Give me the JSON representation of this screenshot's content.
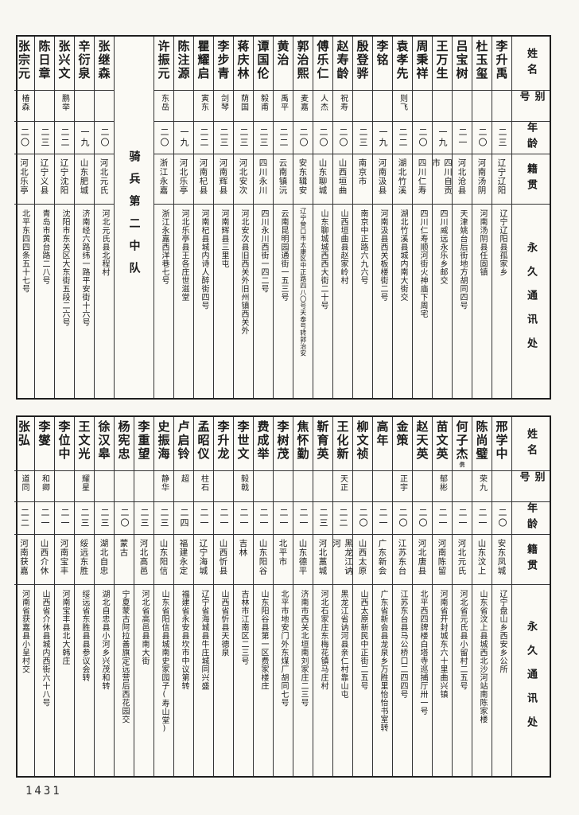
{
  "page": {
    "number": "1431"
  },
  "header_labels": {
    "name": "姓名",
    "alias": "别号",
    "age": "年龄",
    "origin": "籍贯",
    "address": "永久通讯处"
  },
  "tables": [
    {
      "columns": [
        {
          "type": "header"
        },
        {
          "type": "entry",
          "name": "李升禹",
          "alias": "",
          "age": "二三",
          "origin": "辽宁辽阳",
          "address": "辽宁辽阳县孤家乡"
        },
        {
          "type": "entry",
          "name": "杜玉玺",
          "alias": "",
          "age": "二〇",
          "origin": "河南汤阴",
          "address": "河南汤阴县任固镇"
        },
        {
          "type": "entry",
          "name": "吕宝树",
          "alias": "",
          "age": "二一",
          "origin": "河北沧县",
          "address": "天津姚台后街地方胡同四号"
        },
        {
          "type": "entry",
          "name": "王万生",
          "alias": "",
          "age": "一九",
          "origin": "四川自贡市",
          "address": "四川威远永乐乡邮交"
        },
        {
          "type": "entry",
          "name": "周秉祥",
          "alias": "",
          "age": "二〇",
          "origin": "四川仁寿",
          "address": "四川仁寿顺河街火神庙下周宅"
        },
        {
          "type": "entry",
          "name": "袁孝先",
          "alias": "则飞",
          "age": "二二",
          "origin": "湖北竹溪",
          "address": "湖北竹溪县城内南大街交"
        },
        {
          "type": "entry",
          "name": "李铭",
          "alias": "",
          "age": "一九",
          "origin": "河南汲县",
          "address": "河南汲县西关板楼街二号"
        },
        {
          "type": "entry",
          "name": "殷登骅",
          "alias": "",
          "age": "二三",
          "origin": "南京市",
          "address": "南京中正路六九六号"
        },
        {
          "type": "entry",
          "name": "赵寿龄",
          "alias": "祝寿",
          "age": "二〇",
          "origin": "山西垣曲",
          "address": "山西垣曲县赵家岭村"
        },
        {
          "type": "entry",
          "name": "傅乐仁",
          "alias": "人杰",
          "age": "二〇",
          "origin": "山东聊城",
          "address": "山东聊城城西西大街二十号"
        },
        {
          "type": "entry",
          "name": "郭治熙",
          "alias": "麦嘉",
          "age": "二〇",
          "origin": "安东辑安",
          "address": "辽宁营口市太康区中正路四八〇号天泰号转郭治安",
          "small_addr": true
        },
        {
          "type": "entry",
          "name": "黄治",
          "alias": "禹平",
          "age": "二二",
          "origin": "云南镇沅",
          "address": "云南昆明园通街一五三号"
        },
        {
          "type": "entry",
          "name": "谭国伦",
          "alias": "毅甫",
          "age": "二三",
          "origin": "四川永川",
          "address": "四川永川西街一四二号"
        },
        {
          "type": "entry",
          "name": "蒋庆林",
          "alias": "荫国",
          "age": "二三",
          "origin": "河北安次",
          "address": "河北安次县旧西关外旧州镇西关外"
        },
        {
          "type": "entry",
          "name": "李步青",
          "alias": "剑琴",
          "age": "二三",
          "origin": "河南辉县",
          "address": "河南辉县三里屯"
        },
        {
          "type": "entry",
          "name": "瞿耀启",
          "alias": "寅东",
          "age": "二二",
          "origin": "河南杞县",
          "address": "河南杞县城内诗人醉街四号"
        },
        {
          "type": "entry",
          "name": "陈注源",
          "alias": "",
          "age": "一九",
          "origin": "河北乐亭",
          "address": "河北乐亭县王各庄世滋堂"
        },
        {
          "type": "entry",
          "name": "许振元",
          "alias": "东岳",
          "age": "二〇",
          "origin": "浙江永嘉",
          "address": "浙江永嘉西洋巷七号"
        },
        {
          "type": "section",
          "label": "骑兵第二中队"
        },
        {
          "type": "entry",
          "name": "张继森",
          "alias": "",
          "age": "二〇",
          "origin": "河北元氏",
          "address": "河北元氏县北程村"
        },
        {
          "type": "entry",
          "name": "辛衍泉",
          "alias": "",
          "age": "一九",
          "origin": "山东肥城",
          "address": "济南经六路纬一路平安街十六号"
        },
        {
          "type": "entry",
          "name": "张兴文",
          "alias": "鹏举",
          "age": "二二",
          "origin": "辽宁沈阳",
          "address": "沈阳市东关区大东街五段二六号"
        },
        {
          "type": "entry",
          "name": "陈日章",
          "alias": "",
          "age": "二三",
          "origin": "辽宁义县",
          "address": "青岛市黄台路二八号"
        },
        {
          "type": "entry",
          "name": "张宗元",
          "alias": "椿森",
          "age": "二〇",
          "origin": "河北乐亭",
          "address": "北平东四四条五十七号"
        }
      ]
    },
    {
      "columns": [
        {
          "type": "header"
        },
        {
          "type": "entry",
          "name": "邢学中",
          "alias": "",
          "age": "二〇",
          "origin": "安东凤城",
          "address": "辽宁盘山乡西安乡公所"
        },
        {
          "type": "entry",
          "name": "陈尚璧",
          "alias": "荣九",
          "age": "二一",
          "origin": "山东汶上",
          "address": "山东省汶上县城西北沙河站南陈家楼"
        },
        {
          "type": "entry",
          "name": "何子杰",
          "name_note": "㑺",
          "alias": "",
          "age": "二一",
          "origin": "河北元氏",
          "address": "河北省元氏县小留村二五号"
        },
        {
          "type": "entry",
          "name": "苗文英",
          "alias": "郁彬",
          "age": "二一",
          "origin": "河南陈留",
          "address": "河南省开封城东六十里曲兴镇"
        },
        {
          "type": "entry",
          "name": "赵天英",
          "alias": "",
          "age": "二〇",
          "origin": "河北唐县",
          "address": "北平西四牌楼白塔寺巡捕厅卅一号"
        },
        {
          "type": "entry",
          "name": "金策",
          "alias": "正宇",
          "age": "二〇",
          "origin": "江苏东台",
          "address": "江苏东台县马公桥口二四四号"
        },
        {
          "type": "entry",
          "name": "高年",
          "alias": "",
          "age": "二一",
          "origin": "广东新会",
          "address": "广东省新会县龙泉乡万胜里怡怡书室转"
        },
        {
          "type": "entry",
          "name": "柳文祯",
          "alias": "",
          "age": "二〇",
          "origin": "山西太原",
          "address": "山西太原新民中正街二五号"
        },
        {
          "type": "entry",
          "name": "王化新",
          "alias": "天正",
          "age": "二二",
          "origin": "黑龙江讷河",
          "address": "黑龙江省讷河县亲仁村靠山屯"
        },
        {
          "type": "entry",
          "name": "靳育英",
          "alias": "",
          "age": "二三",
          "origin": "河北藁城",
          "address": "河北石家庄东梅花镇马庄村"
        },
        {
          "type": "entry",
          "name": "焦怀勤",
          "alias": "",
          "age": "二一",
          "origin": "山东德平",
          "address": "济南市西关北垣南刘家庄二三号"
        },
        {
          "type": "entry",
          "name": "李树茂",
          "alias": "",
          "age": "二一",
          "origin": "北平市",
          "address": "北平市地安门外东煤厂胡同七号"
        },
        {
          "type": "entry",
          "name": "费成举",
          "alias": "",
          "age": "二一",
          "origin": "山东阳谷",
          "address": "山东阳谷县第一区费家楼庄"
        },
        {
          "type": "entry",
          "name": "李世文",
          "alias": "毅戟",
          "age": "二一",
          "origin": "吉林",
          "address": "吉林市江南区二三号"
        },
        {
          "type": "entry",
          "name": "李升龙",
          "alias": "",
          "age": "二一",
          "origin": "山西忻县",
          "address": "山西省忻县天德泉"
        },
        {
          "type": "entry",
          "name": "孟昭仪",
          "alias": "柱石",
          "age": "二一",
          "origin": "辽宁海城",
          "address": "辽宁省海城县牛庄城同兴盛"
        },
        {
          "type": "entry",
          "name": "卢启铃",
          "alias": "超",
          "age": "二四",
          "origin": "福建永定",
          "address": "福建省永安县坎市中议第转"
        },
        {
          "type": "entry",
          "name": "史振海",
          "alias": "静华",
          "age": "二三",
          "origin": "山东阳信",
          "address": "山东省阳信县城南史家园子(寿山堂)"
        },
        {
          "type": "entry",
          "name": "李重望",
          "alias": "",
          "age": "二三",
          "origin": "河北高邑",
          "address": "河北省高邑县南大街"
        },
        {
          "type": "entry",
          "name": "杨宪忠",
          "alias": "",
          "age": "二〇",
          "origin": "蒙古",
          "address": "宁夏蒙古阿拉善旗定远营后西花园交"
        },
        {
          "type": "entry",
          "name": "徐汉皋",
          "alias": "",
          "age": "二三",
          "origin": "湖北自忠",
          "address": "湖北自忠县小河乡兴茂和转"
        },
        {
          "type": "entry",
          "name": "王文光",
          "alias": "耀星",
          "age": "二三",
          "origin": "绥远东胜",
          "address": "绥远省东胜县县参议会转"
        },
        {
          "type": "entry",
          "name": "李位中",
          "alias": "",
          "age": "二一",
          "origin": "河南宝丰",
          "address": "河南宝丰县北大韩庄"
        },
        {
          "type": "entry",
          "name": "李燮",
          "alias": "和卿",
          "age": "二一",
          "origin": "山西介休",
          "address": "山西省介休县城内西街六十八号"
        },
        {
          "type": "entry",
          "name": "张弘",
          "alias": "道同",
          "age": "二二",
          "origin": "河南获嘉",
          "address": "河南省获嘉县小呈村交"
        }
      ]
    }
  ]
}
